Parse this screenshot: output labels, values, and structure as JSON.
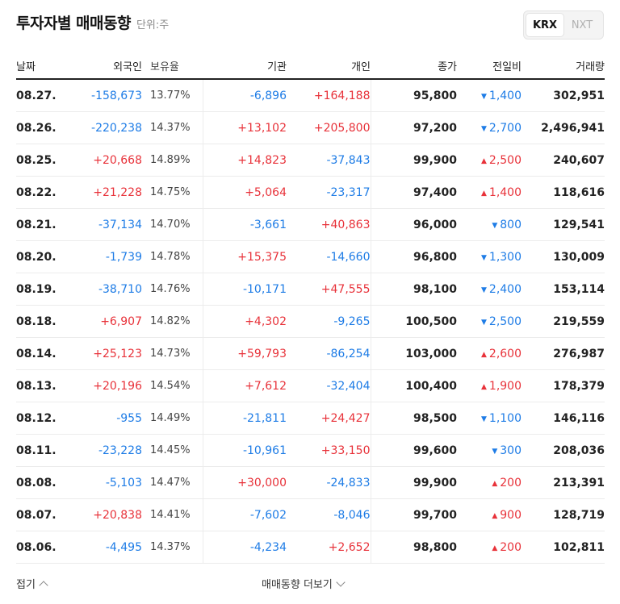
{
  "header": {
    "title": "투자자별 매매동향",
    "unit": "단위:주"
  },
  "market_tabs": [
    {
      "label": "KRX",
      "active": true
    },
    {
      "label": "NXT",
      "active": false
    }
  ],
  "columns": [
    "날짜",
    "외국인",
    "보유율",
    "기관",
    "개인",
    "종가",
    "전일비",
    "거래량"
  ],
  "rows": [
    {
      "date": "08.27.",
      "foreign": "-158,673",
      "rate": "13.77%",
      "inst": "-6,896",
      "indiv": "+164,188",
      "close": "95,800",
      "chg": "1,400",
      "dir": "down",
      "vol": "302,951"
    },
    {
      "date": "08.26.",
      "foreign": "-220,238",
      "rate": "14.37%",
      "inst": "+13,102",
      "indiv": "+205,800",
      "close": "97,200",
      "chg": "2,700",
      "dir": "down",
      "vol": "2,496,941"
    },
    {
      "date": "08.25.",
      "foreign": "+20,668",
      "rate": "14.89%",
      "inst": "+14,823",
      "indiv": "-37,843",
      "close": "99,900",
      "chg": "2,500",
      "dir": "up",
      "vol": "240,607"
    },
    {
      "date": "08.22.",
      "foreign": "+21,228",
      "rate": "14.75%",
      "inst": "+5,064",
      "indiv": "-23,317",
      "close": "97,400",
      "chg": "1,400",
      "dir": "up",
      "vol": "118,616"
    },
    {
      "date": "08.21.",
      "foreign": "-37,134",
      "rate": "14.70%",
      "inst": "-3,661",
      "indiv": "+40,863",
      "close": "96,000",
      "chg": "800",
      "dir": "down",
      "vol": "129,541"
    },
    {
      "date": "08.20.",
      "foreign": "-1,739",
      "rate": "14.78%",
      "inst": "+15,375",
      "indiv": "-14,660",
      "close": "96,800",
      "chg": "1,300",
      "dir": "down",
      "vol": "130,009"
    },
    {
      "date": "08.19.",
      "foreign": "-38,710",
      "rate": "14.76%",
      "inst": "-10,171",
      "indiv": "+47,555",
      "close": "98,100",
      "chg": "2,400",
      "dir": "down",
      "vol": "153,114"
    },
    {
      "date": "08.18.",
      "foreign": "+6,907",
      "rate": "14.82%",
      "inst": "+4,302",
      "indiv": "-9,265",
      "close": "100,500",
      "chg": "2,500",
      "dir": "down",
      "vol": "219,559"
    },
    {
      "date": "08.14.",
      "foreign": "+25,123",
      "rate": "14.73%",
      "inst": "+59,793",
      "indiv": "-86,254",
      "close": "103,000",
      "chg": "2,600",
      "dir": "up",
      "vol": "276,987"
    },
    {
      "date": "08.13.",
      "foreign": "+20,196",
      "rate": "14.54%",
      "inst": "+7,612",
      "indiv": "-32,404",
      "close": "100,400",
      "chg": "1,900",
      "dir": "up",
      "vol": "178,379"
    },
    {
      "date": "08.12.",
      "foreign": "-955",
      "rate": "14.49%",
      "inst": "-21,811",
      "indiv": "+24,427",
      "close": "98,500",
      "chg": "1,100",
      "dir": "down",
      "vol": "146,116"
    },
    {
      "date": "08.11.",
      "foreign": "-23,228",
      "rate": "14.45%",
      "inst": "-10,961",
      "indiv": "+33,150",
      "close": "99,600",
      "chg": "300",
      "dir": "down",
      "vol": "208,036"
    },
    {
      "date": "08.08.",
      "foreign": "-5,103",
      "rate": "14.47%",
      "inst": "+30,000",
      "indiv": "-24,833",
      "close": "99,900",
      "chg": "200",
      "dir": "up",
      "vol": "213,391"
    },
    {
      "date": "08.07.",
      "foreign": "+20,838",
      "rate": "14.41%",
      "inst": "-7,602",
      "indiv": "-8,046",
      "close": "99,700",
      "chg": "900",
      "dir": "up",
      "vol": "128,719"
    },
    {
      "date": "08.06.",
      "foreign": "-4,495",
      "rate": "14.37%",
      "inst": "-4,234",
      "indiv": "+2,652",
      "close": "98,800",
      "chg": "200",
      "dir": "up",
      "vol": "102,811"
    }
  ],
  "footer": {
    "fold_label": "접기",
    "more_label": "매매동향 더보기"
  },
  "colors": {
    "up": "#e8323a",
    "down": "#1e7ce6"
  },
  "icons": {
    "up": "triangle-up-icon",
    "down": "triangle-down-icon"
  }
}
